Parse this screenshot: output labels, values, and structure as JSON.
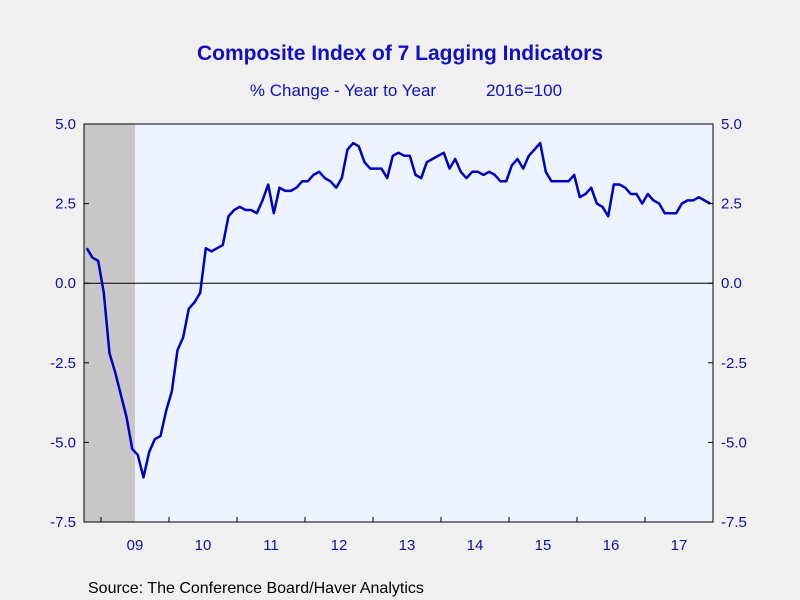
{
  "chart_data": {
    "type": "line",
    "title": "Composite Index of 7 Lagging Indicators",
    "subtitle_left": "% Change - Year to Year",
    "subtitle_right": "2016=100",
    "source": "Source:  The Conference Board/Haver Analytics",
    "ylim": [
      -7.5,
      5.0
    ],
    "y_ticks_left": [
      "5.0",
      "2.5",
      "0.0",
      "-2.5",
      "-5.0",
      "-7.5"
    ],
    "y_ticks_right": [
      "5.0",
      "2.5",
      "0.0",
      "-2.5",
      "-5.0",
      "-7.5"
    ],
    "x_ticks": [
      "09",
      "10",
      "11",
      "12",
      "13",
      "14",
      "15",
      "16",
      "17"
    ],
    "x_range": [
      "2008-10",
      "2017-12"
    ],
    "shaded_period": [
      "2008-10",
      "2009-06"
    ],
    "grid": false,
    "legend": "none",
    "series": [
      {
        "color": "#0000c0",
        "x": [
          "2008-10",
          "2008-11",
          "2008-12",
          "2009-01",
          "2009-02",
          "2009-03",
          "2009-04",
          "2009-05",
          "2009-06",
          "2009-07",
          "2009-08",
          "2009-09",
          "2009-10",
          "2009-11",
          "2009-12",
          "2010-01",
          "2010-02",
          "2010-03",
          "2010-04",
          "2010-05",
          "2010-06",
          "2010-07",
          "2010-08",
          "2010-09",
          "2010-10",
          "2010-11",
          "2010-12",
          "2011-01",
          "2011-02",
          "2011-03",
          "2011-04",
          "2011-05",
          "2011-06",
          "2011-07",
          "2011-08",
          "2011-09",
          "2011-10",
          "2011-11",
          "2011-12",
          "2012-01",
          "2012-02",
          "2012-03",
          "2012-04",
          "2012-05",
          "2012-06",
          "2012-07",
          "2012-08",
          "2012-09",
          "2012-10",
          "2012-11",
          "2012-12",
          "2013-01",
          "2013-02",
          "2013-03",
          "2013-04",
          "2013-05",
          "2013-06",
          "2013-07",
          "2013-08",
          "2013-09",
          "2013-10",
          "2013-11",
          "2013-12",
          "2014-01",
          "2014-02",
          "2014-03",
          "2014-04",
          "2014-05",
          "2014-06",
          "2014-07",
          "2014-08",
          "2014-09",
          "2014-10",
          "2014-11",
          "2014-12",
          "2015-01",
          "2015-02",
          "2015-03",
          "2015-04",
          "2015-05",
          "2015-06",
          "2015-07",
          "2015-08",
          "2015-09",
          "2015-10",
          "2015-11",
          "2015-12",
          "2016-01",
          "2016-02",
          "2016-03",
          "2016-04",
          "2016-05",
          "2016-06",
          "2016-07",
          "2016-08",
          "2016-09",
          "2016-10",
          "2016-11",
          "2016-12",
          "2017-01",
          "2017-02",
          "2017-03",
          "2017-04",
          "2017-05",
          "2017-06",
          "2017-07",
          "2017-08",
          "2017-09",
          "2017-10",
          "2017-11",
          "2017-12"
        ],
        "values": [
          1.1,
          0.8,
          0.7,
          -0.3,
          -2.2,
          -2.8,
          -3.5,
          -4.2,
          -5.2,
          -5.4,
          -6.1,
          -5.3,
          -4.9,
          -4.8,
          -4.0,
          -3.4,
          -2.1,
          -1.7,
          -0.8,
          -0.6,
          -0.3,
          1.1,
          1.0,
          1.1,
          1.2,
          2.1,
          2.3,
          2.4,
          2.3,
          2.3,
          2.2,
          2.6,
          3.1,
          2.2,
          3.0,
          2.9,
          2.9,
          3.0,
          3.2,
          3.2,
          3.4,
          3.5,
          3.3,
          3.2,
          3.0,
          3.3,
          4.2,
          4.4,
          4.3,
          3.8,
          3.6,
          3.6,
          3.6,
          3.3,
          4.0,
          4.1,
          4.0,
          4.0,
          3.4,
          3.3,
          3.8,
          3.9,
          4.0,
          4.1,
          3.6,
          3.9,
          3.5,
          3.3,
          3.5,
          3.5,
          3.4,
          3.5,
          3.4,
          3.2,
          3.2,
          3.7,
          3.9,
          3.6,
          4.0,
          4.2,
          4.4,
          3.5,
          3.2,
          3.2,
          3.2,
          3.2,
          3.4,
          2.7,
          2.8,
          3.0,
          2.5,
          2.4,
          2.1,
          3.1,
          3.1,
          3.0,
          2.8,
          2.8,
          2.5,
          2.8,
          2.6,
          2.5,
          2.2,
          2.2,
          2.2,
          2.5,
          2.6,
          2.6,
          2.7,
          2.6,
          2.5
        ]
      }
    ]
  }
}
